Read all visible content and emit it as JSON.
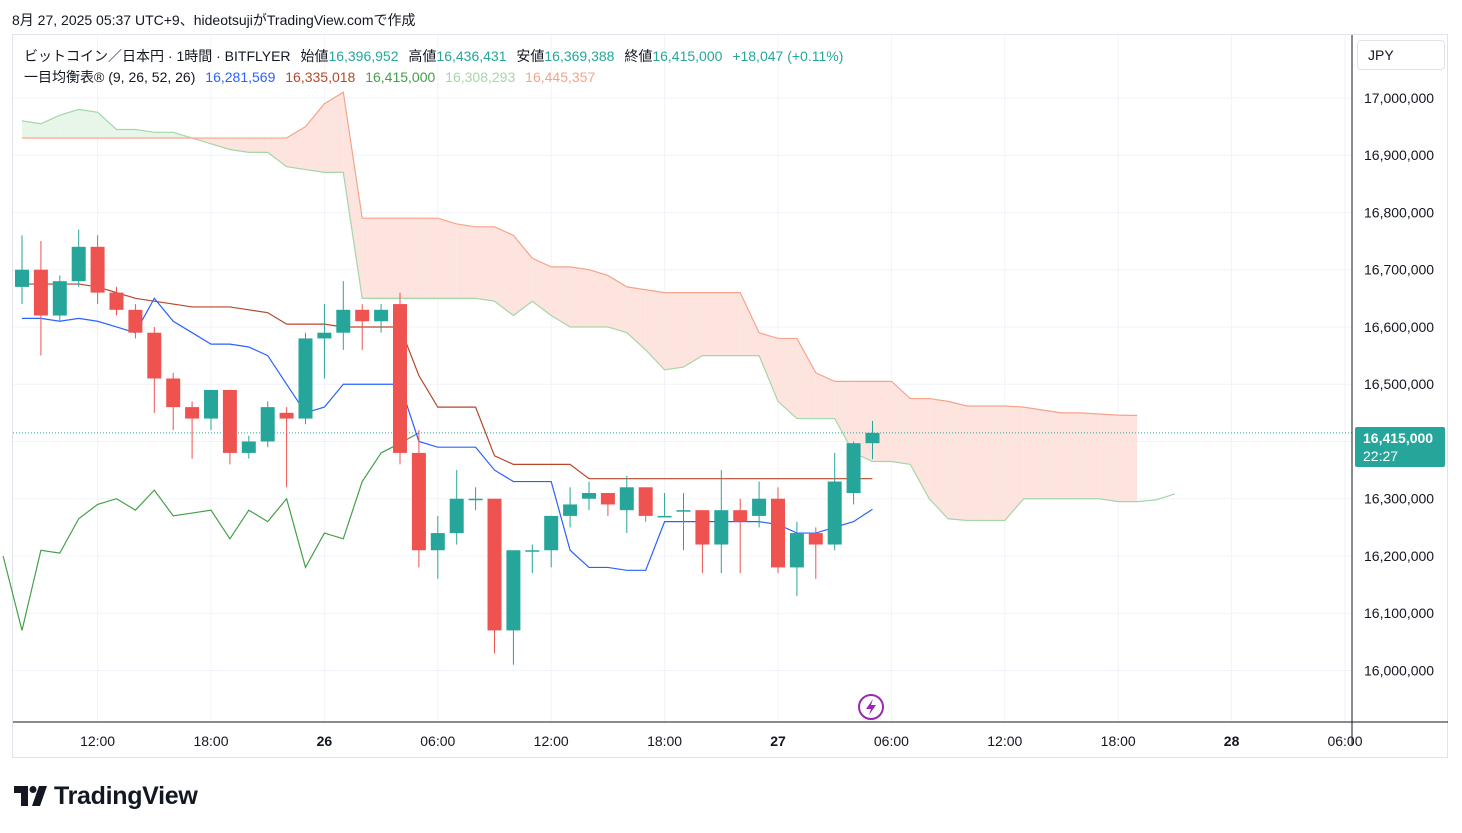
{
  "caption": "8月 27, 2025 05:37 UTC+9、hideotsujiがTradingView.comで作成",
  "legend": {
    "symbol": "ビットコイン／日本円 · 1時間 · BITFLYER",
    "open_label": "始値",
    "open": "16,396,952",
    "high_label": "高値",
    "high": "16,436,431",
    "low_label": "安値",
    "low": "16,369,388",
    "close_label": "終値",
    "close": "16,415,000",
    "change": "+18,047 (+0.11%)",
    "indicator": "一目均衡表®",
    "params": "(9, 26, 52, 26)",
    "tenkan": "16,281,569",
    "kijun": "16,335,018",
    "chikou": "16,415,000",
    "senkou_a": "16,308,293",
    "senkou_b": "16,445,357"
  },
  "currency_button": "JPY",
  "price_tag": {
    "price": "16,415,000",
    "countdown": "22:27"
  },
  "brand": "TradingView",
  "colors": {
    "up": "#26a69a",
    "down": "#ef5350",
    "tenkan": "#2962ff",
    "kijun": "#b7472a",
    "chikou": "#43a047",
    "senkou_a": "#a5d6a7",
    "senkou_b": "#f5a48a",
    "cloud_bull": "#e8f5e9",
    "cloud_bear": "#fde4df",
    "grid": "#f0f3fa"
  },
  "chart_data": {
    "type": "candlestick",
    "ylim": [
      15910000,
      17110000
    ],
    "y_ticks": [
      {
        "value": 16000000,
        "label": "16,000,000"
      },
      {
        "value": 16100000,
        "label": "16,100,000"
      },
      {
        "value": 16200000,
        "label": "16,200,000"
      },
      {
        "value": 16300000,
        "label": "16,300,000"
      },
      {
        "value": 16400000,
        "label": "16,400,000"
      },
      {
        "value": 16500000,
        "label": "16,500,000"
      },
      {
        "value": 16600000,
        "label": "16,600,000"
      },
      {
        "value": 16700000,
        "label": "16,700,000"
      },
      {
        "value": 16800000,
        "label": "16,800,000"
      },
      {
        "value": 16900000,
        "label": "16,900,000"
      },
      {
        "value": 17000000,
        "label": "17,000,000"
      }
    ],
    "x_ticks": [
      {
        "index": 4,
        "label": "12:00",
        "bold": false
      },
      {
        "index": 10,
        "label": "18:00",
        "bold": false
      },
      {
        "index": 16,
        "label": "26",
        "bold": true
      },
      {
        "index": 22,
        "label": "06:00",
        "bold": false
      },
      {
        "index": 28,
        "label": "12:00",
        "bold": false
      },
      {
        "index": 34,
        "label": "18:00",
        "bold": false
      },
      {
        "index": 40,
        "label": "27",
        "bold": true
      },
      {
        "index": 46,
        "label": "06:00",
        "bold": false
      },
      {
        "index": 52,
        "label": "12:00",
        "bold": false
      },
      {
        "index": 58,
        "label": "18:00",
        "bold": false
      },
      {
        "index": 64,
        "label": "28",
        "bold": true
      },
      {
        "index": 70,
        "label": "06:00",
        "bold": false
      }
    ],
    "candles": [
      {
        "o": 16670000,
        "h": 16760000,
        "l": 16640000,
        "c": 16700000
      },
      {
        "o": 16700000,
        "h": 16750000,
        "l": 16550000,
        "c": 16620000
      },
      {
        "o": 16620000,
        "h": 16690000,
        "l": 16610000,
        "c": 16680000
      },
      {
        "o": 16680000,
        "h": 16770000,
        "l": 16670000,
        "c": 16740000
      },
      {
        "o": 16740000,
        "h": 16760000,
        "l": 16640000,
        "c": 16660000
      },
      {
        "o": 16660000,
        "h": 16670000,
        "l": 16620000,
        "c": 16630000
      },
      {
        "o": 16630000,
        "h": 16640000,
        "l": 16580000,
        "c": 16590000
      },
      {
        "o": 16590000,
        "h": 16600000,
        "l": 16450000,
        "c": 16510000
      },
      {
        "o": 16510000,
        "h": 16520000,
        "l": 16420000,
        "c": 16460000
      },
      {
        "o": 16460000,
        "h": 16470000,
        "l": 16370000,
        "c": 16440000
      },
      {
        "o": 16440000,
        "h": 16490000,
        "l": 16420000,
        "c": 16490000
      },
      {
        "o": 16490000,
        "h": 16490000,
        "l": 16360000,
        "c": 16380000
      },
      {
        "o": 16380000,
        "h": 16410000,
        "l": 16370000,
        "c": 16400000
      },
      {
        "o": 16400000,
        "h": 16470000,
        "l": 16390000,
        "c": 16460000
      },
      {
        "o": 16450000,
        "h": 16460000,
        "l": 16320000,
        "c": 16440000
      },
      {
        "o": 16440000,
        "h": 16590000,
        "l": 16430000,
        "c": 16580000
      },
      {
        "o": 16580000,
        "h": 16640000,
        "l": 16510000,
        "c": 16590000
      },
      {
        "o": 16590000,
        "h": 16680000,
        "l": 16560000,
        "c": 16630000
      },
      {
        "o": 16630000,
        "h": 16640000,
        "l": 16560000,
        "c": 16610000
      },
      {
        "o": 16610000,
        "h": 16640000,
        "l": 16590000,
        "c": 16630000
      },
      {
        "o": 16640000,
        "h": 16660000,
        "l": 16360000,
        "c": 16380000
      },
      {
        "o": 16380000,
        "h": 16420000,
        "l": 16180000,
        "c": 16210000
      },
      {
        "o": 16210000,
        "h": 16270000,
        "l": 16160000,
        "c": 16240000
      },
      {
        "o": 16240000,
        "h": 16350000,
        "l": 16220000,
        "c": 16300000
      },
      {
        "o": 16300000,
        "h": 16320000,
        "l": 16280000,
        "c": 16300000
      },
      {
        "o": 16300000,
        "h": 16300000,
        "l": 16030000,
        "c": 16070000
      },
      {
        "o": 16070000,
        "h": 16210000,
        "l": 16010000,
        "c": 16210000
      },
      {
        "o": 16210000,
        "h": 16220000,
        "l": 16170000,
        "c": 16210000
      },
      {
        "o": 16210000,
        "h": 16270000,
        "l": 16180000,
        "c": 16270000
      },
      {
        "o": 16270000,
        "h": 16320000,
        "l": 16250000,
        "c": 16290000
      },
      {
        "o": 16300000,
        "h": 16330000,
        "l": 16280000,
        "c": 16310000
      },
      {
        "o": 16310000,
        "h": 16310000,
        "l": 16270000,
        "c": 16290000
      },
      {
        "o": 16280000,
        "h": 16340000,
        "l": 16240000,
        "c": 16320000
      },
      {
        "o": 16320000,
        "h": 16320000,
        "l": 16260000,
        "c": 16270000
      },
      {
        "o": 16270000,
        "h": 16310000,
        "l": 16270000,
        "c": 16270000
      },
      {
        "o": 16280000,
        "h": 16310000,
        "l": 16210000,
        "c": 16280000
      },
      {
        "o": 16280000,
        "h": 16280000,
        "l": 16170000,
        "c": 16220000
      },
      {
        "o": 16220000,
        "h": 16350000,
        "l": 16170000,
        "c": 16280000
      },
      {
        "o": 16280000,
        "h": 16300000,
        "l": 16170000,
        "c": 16260000
      },
      {
        "o": 16270000,
        "h": 16330000,
        "l": 16250000,
        "c": 16300000
      },
      {
        "o": 16300000,
        "h": 16320000,
        "l": 16170000,
        "c": 16180000
      },
      {
        "o": 16180000,
        "h": 16260000,
        "l": 16130000,
        "c": 16240000
      },
      {
        "o": 16240000,
        "h": 16250000,
        "l": 16160000,
        "c": 16220000
      },
      {
        "o": 16220000,
        "h": 16380000,
        "l": 16210000,
        "c": 16330000
      },
      {
        "o": 16310000,
        "h": 16400000,
        "l": 16290000,
        "c": 16397000
      },
      {
        "o": 16397000,
        "h": 16436000,
        "l": 16369000,
        "c": 16415000
      }
    ],
    "tenkan": [
      [
        0,
        16615000
      ],
      [
        1,
        16615000
      ],
      [
        2,
        16610000
      ],
      [
        3,
        16615000
      ],
      [
        4,
        16610000
      ],
      [
        5,
        16600000
      ],
      [
        6,
        16590000
      ],
      [
        7,
        16650000
      ],
      [
        8,
        16610000
      ],
      [
        9,
        16590000
      ],
      [
        10,
        16570000
      ],
      [
        11,
        16570000
      ],
      [
        12,
        16565000
      ],
      [
        13,
        16550000
      ],
      [
        14,
        16500000
      ],
      [
        15,
        16450000
      ],
      [
        16,
        16460000
      ],
      [
        17,
        16500000
      ],
      [
        18,
        16500000
      ],
      [
        19,
        16500000
      ],
      [
        20,
        16500000
      ],
      [
        21,
        16400000
      ],
      [
        22,
        16390000
      ],
      [
        23,
        16390000
      ],
      [
        24,
        16390000
      ],
      [
        25,
        16350000
      ],
      [
        26,
        16330000
      ],
      [
        27,
        16330000
      ],
      [
        28,
        16330000
      ],
      [
        29,
        16210000
      ],
      [
        30,
        16180000
      ],
      [
        31,
        16180000
      ],
      [
        32,
        16175000
      ],
      [
        33,
        16175000
      ],
      [
        34,
        16260000
      ],
      [
        35,
        16260000
      ],
      [
        36,
        16260000
      ],
      [
        37,
        16260000
      ],
      [
        38,
        16260000
      ],
      [
        39,
        16260000
      ],
      [
        40,
        16255000
      ],
      [
        41,
        16240000
      ],
      [
        42,
        16240000
      ],
      [
        43,
        16250000
      ],
      [
        44,
        16260000
      ],
      [
        45,
        16281569
      ]
    ],
    "kijun": [
      [
        0,
        16675000
      ],
      [
        1,
        16675000
      ],
      [
        2,
        16675000
      ],
      [
        3,
        16675000
      ],
      [
        4,
        16670000
      ],
      [
        5,
        16660000
      ],
      [
        6,
        16650000
      ],
      [
        7,
        16645000
      ],
      [
        8,
        16640000
      ],
      [
        9,
        16635000
      ],
      [
        10,
        16635000
      ],
      [
        11,
        16635000
      ],
      [
        12,
        16630000
      ],
      [
        13,
        16625000
      ],
      [
        14,
        16605000
      ],
      [
        15,
        16605000
      ],
      [
        16,
        16605000
      ],
      [
        17,
        16600000
      ],
      [
        18,
        16600000
      ],
      [
        19,
        16600000
      ],
      [
        20,
        16600000
      ],
      [
        21,
        16515000
      ],
      [
        22,
        16460000
      ],
      [
        23,
        16460000
      ],
      [
        24,
        16460000
      ],
      [
        25,
        16375000
      ],
      [
        26,
        16360000
      ],
      [
        27,
        16360000
      ],
      [
        28,
        16360000
      ],
      [
        29,
        16360000
      ],
      [
        30,
        16335000
      ],
      [
        31,
        16335000
      ],
      [
        32,
        16335000
      ],
      [
        33,
        16335000
      ],
      [
        34,
        16335000
      ],
      [
        35,
        16335000
      ],
      [
        36,
        16335000
      ],
      [
        37,
        16335000
      ],
      [
        38,
        16335000
      ],
      [
        39,
        16335000
      ],
      [
        40,
        16335000
      ],
      [
        41,
        16335000
      ],
      [
        42,
        16335000
      ],
      [
        43,
        16335000
      ],
      [
        44,
        16335000
      ],
      [
        45,
        16335018
      ]
    ],
    "chikou": [
      [
        -1,
        16200000
      ],
      [
        0,
        16070000
      ],
      [
        1,
        16210000
      ],
      [
        2,
        16205000
      ],
      [
        3,
        16265000
      ],
      [
        4,
        16290000
      ],
      [
        5,
        16300000
      ],
      [
        6,
        16280000
      ],
      [
        7,
        16315000
      ],
      [
        8,
        16270000
      ],
      [
        9,
        16275000
      ],
      [
        10,
        16280000
      ],
      [
        11,
        16230000
      ],
      [
        12,
        16280000
      ],
      [
        13,
        16260000
      ],
      [
        14,
        16300000
      ],
      [
        15,
        16180000
      ],
      [
        16,
        16240000
      ],
      [
        17,
        16230000
      ],
      [
        18,
        16330000
      ],
      [
        19,
        16380000
      ],
      [
        20,
        16397000
      ],
      [
        21,
        16415000
      ]
    ],
    "senkou_a": [
      [
        0,
        16960000
      ],
      [
        1,
        16955000
      ],
      [
        2,
        16970000
      ],
      [
        3,
        16980000
      ],
      [
        4,
        16975000
      ],
      [
        5,
        16945000
      ],
      [
        6,
        16945000
      ],
      [
        7,
        16940000
      ],
      [
        8,
        16940000
      ],
      [
        9,
        16930000
      ],
      [
        10,
        16920000
      ],
      [
        11,
        16910000
      ],
      [
        12,
        16905000
      ],
      [
        13,
        16905000
      ],
      [
        14,
        16880000
      ],
      [
        15,
        16875000
      ],
      [
        16,
        16870000
      ],
      [
        17,
        16870000
      ],
      [
        18,
        16650000
      ],
      [
        19,
        16650000
      ],
      [
        20,
        16650000
      ],
      [
        21,
        16650000
      ],
      [
        22,
        16650000
      ],
      [
        23,
        16650000
      ],
      [
        24,
        16650000
      ],
      [
        25,
        16645000
      ],
      [
        26,
        16620000
      ],
      [
        27,
        16645000
      ],
      [
        28,
        16620000
      ],
      [
        29,
        16600000
      ],
      [
        30,
        16600000
      ],
      [
        31,
        16600000
      ],
      [
        32,
        16590000
      ],
      [
        33,
        16560000
      ],
      [
        34,
        16525000
      ],
      [
        35,
        16530000
      ],
      [
        36,
        16550000
      ],
      [
        37,
        16550000
      ],
      [
        38,
        16550000
      ],
      [
        39,
        16550000
      ],
      [
        40,
        16470000
      ],
      [
        41,
        16440000
      ],
      [
        42,
        16440000
      ],
      [
        43,
        16440000
      ],
      [
        44,
        16380000
      ],
      [
        45,
        16365000
      ],
      [
        46,
        16365000
      ],
      [
        47,
        16360000
      ],
      [
        48,
        16300000
      ],
      [
        49,
        16265000
      ],
      [
        50,
        16262000
      ],
      [
        51,
        16262000
      ],
      [
        52,
        16262000
      ],
      [
        53,
        16300000
      ],
      [
        54,
        16300000
      ],
      [
        55,
        16300000
      ],
      [
        56,
        16300000
      ],
      [
        57,
        16300000
      ],
      [
        58,
        16295000
      ],
      [
        59,
        16295000
      ],
      [
        60,
        16298000
      ],
      [
        61,
        16308293
      ]
    ],
    "senkou_b": [
      [
        0,
        16930000
      ],
      [
        1,
        16930000
      ],
      [
        2,
        16930000
      ],
      [
        3,
        16930000
      ],
      [
        4,
        16930000
      ],
      [
        5,
        16930000
      ],
      [
        6,
        16930000
      ],
      [
        7,
        16930000
      ],
      [
        8,
        16930000
      ],
      [
        9,
        16930000
      ],
      [
        10,
        16930000
      ],
      [
        11,
        16930000
      ],
      [
        12,
        16930000
      ],
      [
        13,
        16930000
      ],
      [
        14,
        16930000
      ],
      [
        15,
        16950000
      ],
      [
        16,
        16990000
      ],
      [
        17,
        17010000
      ],
      [
        18,
        16790000
      ],
      [
        19,
        16790000
      ],
      [
        20,
        16790000
      ],
      [
        21,
        16790000
      ],
      [
        22,
        16790000
      ],
      [
        23,
        16780000
      ],
      [
        24,
        16775000
      ],
      [
        25,
        16775000
      ],
      [
        26,
        16760000
      ],
      [
        27,
        16720000
      ],
      [
        28,
        16705000
      ],
      [
        29,
        16705000
      ],
      [
        30,
        16700000
      ],
      [
        31,
        16690000
      ],
      [
        32,
        16670000
      ],
      [
        33,
        16665000
      ],
      [
        34,
        16660000
      ],
      [
        35,
        16660000
      ],
      [
        36,
        16660000
      ],
      [
        37,
        16660000
      ],
      [
        38,
        16660000
      ],
      [
        39,
        16590000
      ],
      [
        40,
        16580000
      ],
      [
        41,
        16580000
      ],
      [
        42,
        16520000
      ],
      [
        43,
        16505000
      ],
      [
        44,
        16505000
      ],
      [
        45,
        16505000
      ],
      [
        46,
        16505000
      ],
      [
        47,
        16475000
      ],
      [
        48,
        16475000
      ],
      [
        49,
        16470000
      ],
      [
        50,
        16462000
      ],
      [
        51,
        16462000
      ],
      [
        52,
        16462000
      ],
      [
        53,
        16460000
      ],
      [
        54,
        16455000
      ],
      [
        55,
        16450000
      ],
      [
        56,
        16450000
      ],
      [
        57,
        16448000
      ],
      [
        58,
        16446000
      ],
      [
        59,
        16445357
      ]
    ]
  }
}
